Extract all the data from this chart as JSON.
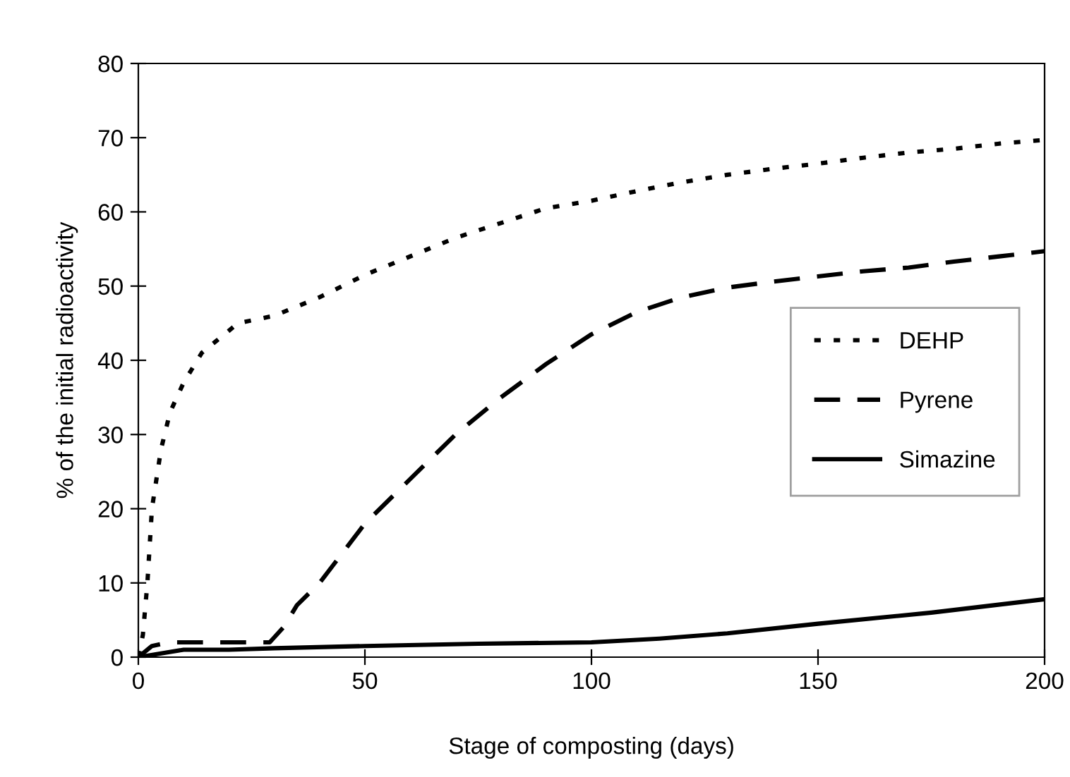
{
  "chart_data": {
    "type": "line",
    "xlabel": "Stage of composting (days)",
    "ylabel": "% of the initial radioactivity",
    "xlim": [
      0,
      200
    ],
    "ylim": [
      0,
      80
    ],
    "xticks": [
      0,
      50,
      100,
      150,
      200
    ],
    "yticks": [
      0,
      10,
      20,
      30,
      40,
      50,
      60,
      70,
      80
    ],
    "grid": false,
    "legend": "right",
    "marker": "none",
    "series": [
      {
        "name": "DEHP",
        "color": "#000000",
        "line_style": "dotted",
        "x": [
          0,
          1,
          2,
          3,
          5,
          7,
          10,
          14,
          18,
          22,
          30,
          40,
          50,
          60,
          70,
          80,
          90,
          100,
          110,
          120,
          130,
          140,
          150,
          160,
          170,
          180,
          190,
          200
        ],
        "values": [
          0,
          3,
          10,
          20,
          28,
          33,
          37,
          41,
          43,
          45,
          46,
          48.5,
          51.5,
          54,
          56.5,
          58.5,
          60.5,
          61.5,
          62.8,
          64,
          65,
          65.8,
          66.5,
          67.3,
          68,
          68.5,
          69.2,
          69.7
        ]
      },
      {
        "name": "Pyrene",
        "color": "#000000",
        "line_style": "dashed",
        "x": [
          0,
          3,
          7,
          29,
          32,
          35,
          40,
          45,
          50,
          60,
          70,
          80,
          90,
          100,
          110,
          120,
          130,
          140,
          150,
          160,
          170,
          180,
          190,
          200
        ],
        "values": [
          0,
          1.5,
          2,
          2,
          4,
          7,
          10,
          14,
          18,
          24,
          30,
          35,
          39.5,
          43.5,
          46.5,
          48.5,
          49.8,
          50.6,
          51.3,
          52,
          52.5,
          53.3,
          54,
          54.7
        ]
      },
      {
        "name": "Simazine",
        "color": "#000000",
        "line_style": "solid",
        "x": [
          0,
          5,
          10,
          20,
          30,
          50,
          75,
          100,
          115,
          130,
          150,
          175,
          200
        ],
        "values": [
          0,
          0.5,
          1,
          1,
          1.2,
          1.5,
          1.8,
          2,
          2.5,
          3.2,
          4.5,
          6,
          7.8
        ]
      }
    ]
  }
}
